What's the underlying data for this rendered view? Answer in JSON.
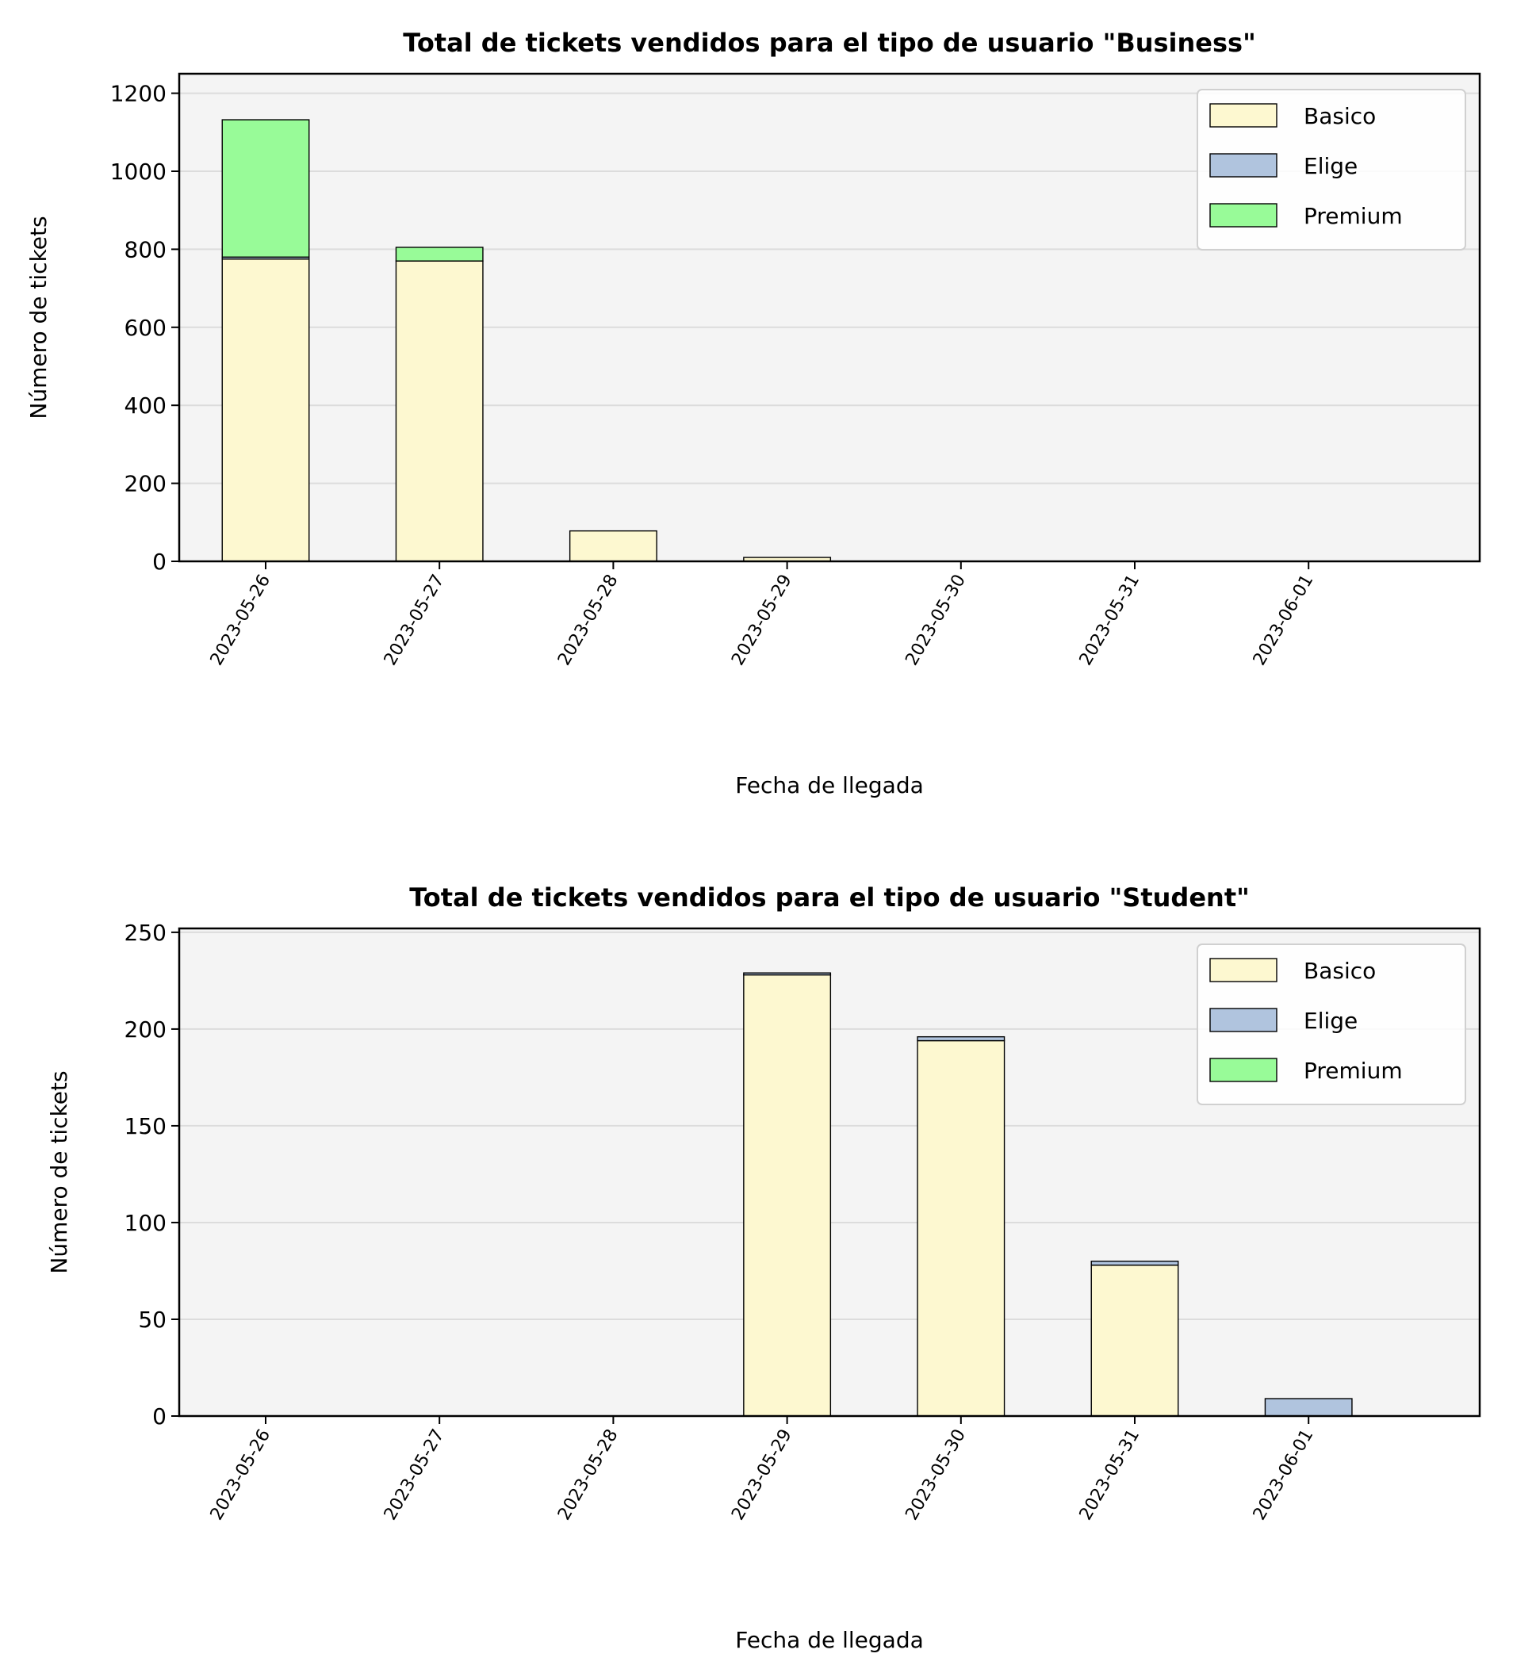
{
  "chart_data": [
    {
      "type": "bar",
      "stacked": true,
      "title": "Total de tickets vendidos para el tipo de usuario \"Business\"",
      "xlabel": "Fecha de llegada",
      "ylabel": "Número de tickets",
      "categories": [
        "2023-05-26",
        "2023-05-27",
        "2023-05-28",
        "2023-05-29",
        "2023-05-30",
        "2023-05-31",
        "2023-06-01"
      ],
      "series": [
        {
          "name": "Basico",
          "color": "#fdf8d0",
          "values": [
            775,
            770,
            78,
            10,
            0,
            0,
            0
          ]
        },
        {
          "name": "Elige",
          "color": "#b0c4de",
          "values": [
            5,
            0,
            0,
            0,
            0,
            0,
            0
          ]
        },
        {
          "name": "Premium",
          "color": "#98fb98",
          "values": [
            352,
            35,
            0,
            0,
            0,
            0,
            0
          ]
        }
      ],
      "ylim": [
        0,
        1250
      ],
      "yticks": [
        0,
        200,
        400,
        600,
        800,
        1000,
        1200
      ],
      "grid": "y",
      "legend_position": "upper right",
      "background": "#f4f4f4"
    },
    {
      "type": "bar",
      "stacked": true,
      "title": "Total de tickets vendidos para el tipo de usuario \"Student\"",
      "xlabel": "Fecha de llegada",
      "ylabel": "Número de tickets",
      "categories": [
        "2023-05-26",
        "2023-05-27",
        "2023-05-28",
        "2023-05-29",
        "2023-05-30",
        "2023-05-31",
        "2023-06-01"
      ],
      "series": [
        {
          "name": "Basico",
          "color": "#fdf8d0",
          "values": [
            0,
            0,
            0,
            228,
            194,
            78,
            0
          ]
        },
        {
          "name": "Elige",
          "color": "#b0c4de",
          "values": [
            0,
            0,
            0,
            1,
            2,
            2,
            9
          ]
        },
        {
          "name": "Premium",
          "color": "#98fb98",
          "values": [
            0,
            0,
            0,
            0,
            0,
            0,
            0
          ]
        }
      ],
      "ylim": [
        0,
        252
      ],
      "yticks": [
        0,
        50,
        100,
        150,
        200,
        250
      ],
      "grid": "y",
      "legend_position": "upper right",
      "background": "#f4f4f4"
    }
  ]
}
